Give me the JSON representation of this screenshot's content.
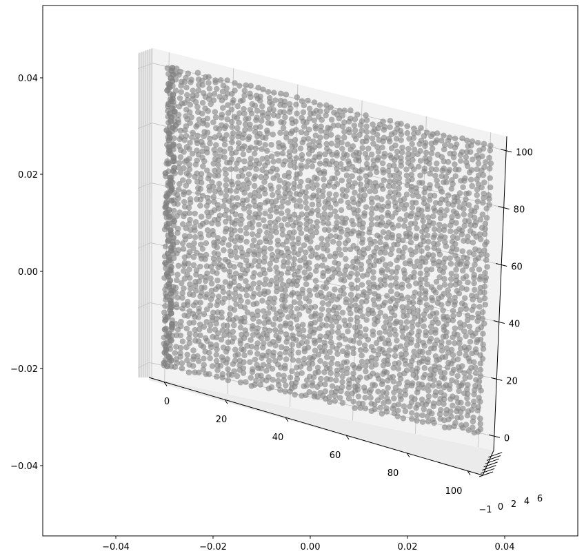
{
  "chart_data": {
    "type": "scatter",
    "projection": "3d",
    "title": "",
    "outer_axes": {
      "xlim": [
        -0.055,
        0.055
      ],
      "ylim": [
        -0.055,
        0.055
      ],
      "xticks": [
        "−0.04",
        "−0.02",
        "0.00",
        "0.02",
        "0.04"
      ],
      "yticks": [
        "0.04",
        "0.02",
        "0.00",
        "−0.02",
        "−0.04"
      ]
    },
    "axes3d": {
      "x_ticks": [
        "0",
        "20",
        "40",
        "60",
        "80",
        "100"
      ],
      "z_ticks": [
        "0",
        "20",
        "40",
        "60",
        "80",
        "100"
      ],
      "y_ticks": [
        "−1",
        "0",
        "2",
        "4",
        "6"
      ],
      "xlim": [
        -5,
        105
      ],
      "zlim": [
        -5,
        105
      ],
      "grid": true
    },
    "points": {
      "description": "dense grid of points",
      "x_range": [
        0,
        100
      ],
      "z_range": [
        0,
        100
      ],
      "y_value": 0,
      "color": "#808080",
      "alpha": 0.6
    },
    "pane_color": "#f2f2f2",
    "grid_color": "#c8c8c8"
  }
}
